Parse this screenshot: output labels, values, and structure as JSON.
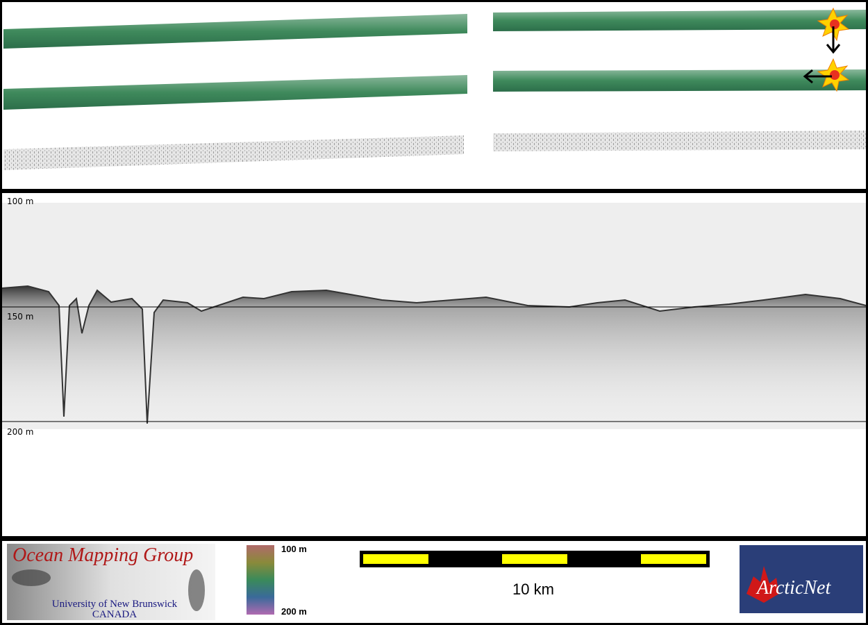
{
  "echogram": {
    "depth_labels": [
      "100 m",
      "150 m",
      "200 m"
    ]
  },
  "footer": {
    "logo": {
      "title": "Ocean Mapping Group",
      "subtitle": "University of New Brunswick",
      "country": "CANADA"
    },
    "colorbar_labels": [
      "100 m",
      "200 m"
    ],
    "scale_bar_label": "10 km",
    "partner_logo": "ArcticNet"
  }
}
